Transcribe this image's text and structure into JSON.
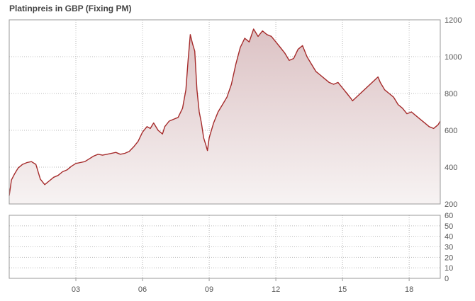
{
  "chart_data": {
    "type": "area",
    "title": "Platinpreis in GBP (Fixing  PM)",
    "xlabel": "",
    "ylabel": "",
    "x_range": [
      2000.0,
      2019.4
    ],
    "x_ticks": [
      {
        "x": 2003,
        "label": "03"
      },
      {
        "x": 2006,
        "label": "06"
      },
      {
        "x": 2009,
        "label": "09"
      },
      {
        "x": 2012,
        "label": "12"
      },
      {
        "x": 2015,
        "label": "15"
      },
      {
        "x": 2018,
        "label": "18"
      }
    ],
    "y_axis_main": {
      "range": [
        200,
        1200
      ],
      "ticks": [
        "1200",
        "1000",
        "800",
        "600",
        "400",
        "200"
      ],
      "position": "right"
    },
    "y_axis_sub": {
      "range": [
        0,
        60
      ],
      "ticks": [
        "60",
        "50",
        "40",
        "30",
        "20",
        "10",
        "0"
      ],
      "position": "right"
    },
    "grid": true,
    "legend": "none",
    "series": [
      {
        "x": [
          2000.0,
          2000.1,
          2000.25,
          2000.4,
          2000.6,
          2000.8,
          2001.0,
          2001.2,
          2001.4,
          2001.6,
          2001.8,
          2002.0,
          2002.2,
          2002.4,
          2002.6,
          2002.8,
          2003.0,
          2003.2,
          2003.4,
          2003.6,
          2003.8,
          2004.0,
          2004.2,
          2004.4,
          2004.6,
          2004.8,
          2005.0,
          2005.2,
          2005.4,
          2005.6,
          2005.8,
          2006.0,
          2006.2,
          2006.35,
          2006.5,
          2006.7,
          2006.9,
          2007.0,
          2007.2,
          2007.4,
          2007.6,
          2007.8,
          2007.95,
          2008.05,
          2008.15,
          2008.25,
          2008.35,
          2008.45,
          2008.55,
          2008.65,
          2008.75,
          2008.85,
          2008.92,
          2009.0,
          2009.2,
          2009.4,
          2009.6,
          2009.8,
          2010.0,
          2010.2,
          2010.4,
          2010.6,
          2010.8,
          2011.0,
          2011.2,
          2011.4,
          2011.6,
          2011.8,
          2012.0,
          2012.2,
          2012.4,
          2012.6,
          2012.8,
          2013.0,
          2013.2,
          2013.4,
          2013.6,
          2013.8,
          2014.0,
          2014.2,
          2014.4,
          2014.6,
          2014.8,
          2015.0,
          2015.2,
          2015.4,
          2015.45,
          2016.6,
          2016.7,
          2016.9,
          2017.1,
          2017.3,
          2017.5,
          2017.7,
          2017.9,
          2018.1,
          2018.3,
          2018.5,
          2018.7,
          2018.9,
          2019.1,
          2019.3,
          2019.4
        ],
        "values": [
          245,
          330,
          365,
          395,
          415,
          425,
          430,
          415,
          335,
          305,
          325,
          345,
          355,
          375,
          385,
          405,
          420,
          425,
          430,
          445,
          460,
          470,
          465,
          470,
          475,
          480,
          470,
          475,
          485,
          510,
          540,
          590,
          620,
          610,
          640,
          600,
          580,
          620,
          650,
          660,
          670,
          720,
          820,
          980,
          1120,
          1070,
          1030,
          820,
          700,
          640,
          560,
          520,
          490,
          560,
          640,
          700,
          740,
          780,
          850,
          960,
          1050,
          1100,
          1080,
          1150,
          1110,
          1140,
          1120,
          1110,
          1080,
          1050,
          1020,
          980,
          990,
          1040,
          1060,
          1000,
          960,
          920,
          900,
          880,
          860,
          850,
          860,
          830,
          800,
          770,
          760,
          890,
          860,
          820,
          800,
          780,
          740,
          720,
          690,
          700,
          680,
          660,
          640,
          620,
          610,
          630,
          650
        ]
      }
    ],
    "colors": {
      "line": "#a52a2a",
      "fill_top": "#dcc2c4",
      "fill_bottom": "#f7f3f3",
      "grid": "#bbbbbb",
      "frame": "#999999"
    }
  }
}
